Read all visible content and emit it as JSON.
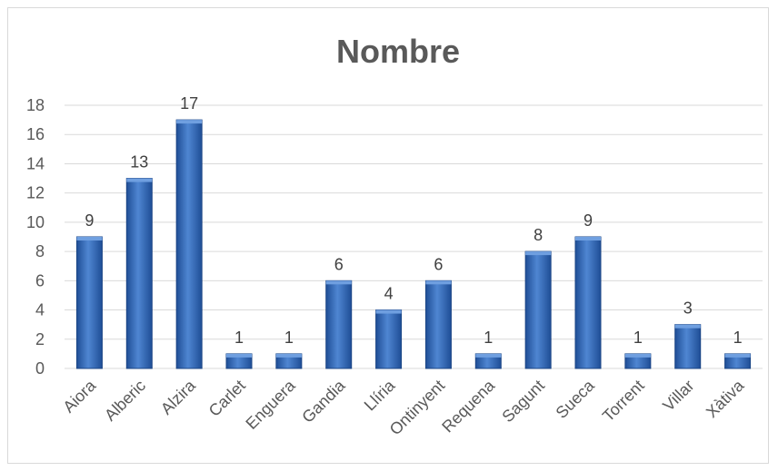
{
  "chart_data": {
    "type": "bar",
    "title": "Nombre",
    "xlabel": "",
    "ylabel": "",
    "categories": [
      "Aiora",
      "Alberic",
      "Alzira",
      "Carlet",
      "Enguera",
      "Gandia",
      "Llíria",
      "Ontinyent",
      "Requena",
      "Sagunt",
      "Sueca",
      "Torrent",
      "Villar",
      "Xàtiva"
    ],
    "values": [
      9,
      13,
      17,
      1,
      1,
      6,
      4,
      6,
      1,
      8,
      9,
      1,
      3,
      1
    ],
    "ylim": [
      0,
      18
    ],
    "yticks": [
      0,
      2,
      4,
      6,
      8,
      10,
      12,
      14,
      16,
      18
    ],
    "grid": true,
    "legend": "none",
    "data_labels": true,
    "colors": {
      "bar": "#2e6cc0",
      "bar_dark": "#1f4e96",
      "bar_light": "#5b93dd",
      "grid": "#d9d9d9",
      "text": "#595959"
    }
  }
}
